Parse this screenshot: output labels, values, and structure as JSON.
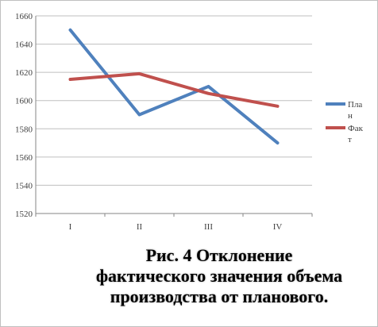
{
  "chart_data": {
    "type": "line",
    "categories": [
      "I",
      "II",
      "III",
      "IV"
    ],
    "series": [
      {
        "name_lines": [
          "Пла",
          "н"
        ],
        "values": [
          1650,
          1590,
          1610,
          1570
        ],
        "color": "#4f81bd"
      },
      {
        "name_lines": [
          "Фак",
          "т"
        ],
        "values": [
          1615,
          1619,
          1605,
          1596
        ],
        "color": "#c0504d"
      }
    ],
    "ylim": [
      1520,
      1660
    ],
    "yticks": [
      1520,
      1540,
      1560,
      1580,
      1600,
      1620,
      1640,
      1660
    ],
    "grid": true,
    "legend_position": "right"
  },
  "caption_lines": [
    "Рис. 4 Отклонение",
    "фактического значения объема",
    "производства от планового."
  ]
}
